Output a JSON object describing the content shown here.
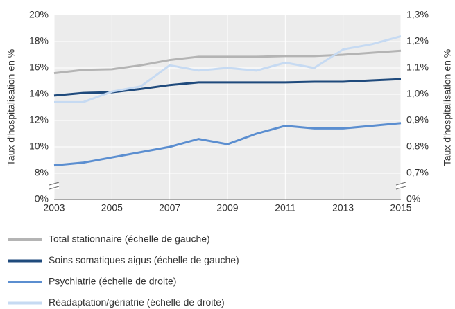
{
  "chart_data": {
    "type": "line",
    "ylabel": "Taux d'hospitalisation en %",
    "y2label": "Taux d'hospitalisation en %",
    "x": [
      2003,
      2004,
      2005,
      2006,
      2007,
      2008,
      2009,
      2010,
      2011,
      2012,
      2013,
      2014,
      2015
    ],
    "xlim": [
      2003,
      2015
    ],
    "xticks": [
      2003,
      2005,
      2007,
      2009,
      2011,
      2013,
      2015
    ],
    "ylim": [
      0,
      20
    ],
    "ybreak": [
      0,
      8
    ],
    "yticks": [
      {
        "value": 0,
        "label": "0%"
      },
      {
        "value": 8,
        "label": "8%"
      },
      {
        "value": 10,
        "label": "10%"
      },
      {
        "value": 12,
        "label": "12%"
      },
      {
        "value": 14,
        "label": "14%"
      },
      {
        "value": 16,
        "label": "16%"
      },
      {
        "value": 18,
        "label": "18%"
      },
      {
        "value": 20,
        "label": "20%"
      }
    ],
    "y2lim": [
      0,
      1.3
    ],
    "y2break": [
      0,
      0.7
    ],
    "y2ticks": [
      {
        "value": 0,
        "label": "0%"
      },
      {
        "value": 0.7,
        "label": "0,7%"
      },
      {
        "value": 0.8,
        "label": "0,8%"
      },
      {
        "value": 0.9,
        "label": "0,9%"
      },
      {
        "value": 1.0,
        "label": "1,0%"
      },
      {
        "value": 1.1,
        "label": "1,1%"
      },
      {
        "value": 1.2,
        "label": "1,2%"
      },
      {
        "value": 1.3,
        "label": "1,3%"
      }
    ],
    "grid": true,
    "series": [
      {
        "name": "Total stationnaire (échelle de gauche)",
        "color": "#b4b4b4",
        "axis": "y",
        "values": [
          15.6,
          15.85,
          15.9,
          16.2,
          16.6,
          16.85,
          16.85,
          16.85,
          16.9,
          16.9,
          17.0,
          17.15,
          17.3
        ]
      },
      {
        "name": "Soins somatiques aigus (échelle de gauche)",
        "color": "#1f4a7c",
        "axis": "y",
        "values": [
          13.9,
          14.1,
          14.15,
          14.4,
          14.7,
          14.9,
          14.9,
          14.9,
          14.9,
          14.95,
          14.95,
          15.05,
          15.15
        ]
      },
      {
        "name": "Psychiatrie (échelle de droite)",
        "color": "#5b8ed0",
        "axis": "y2",
        "values": [
          0.73,
          0.74,
          0.76,
          0.78,
          0.8,
          0.83,
          0.81,
          0.85,
          0.88,
          0.87,
          0.87,
          0.88,
          0.89
        ]
      },
      {
        "name": "Réadaptation/gériatrie (échelle de droite)",
        "color": "#c6daf2",
        "axis": "y2",
        "values": [
          0.97,
          0.97,
          1.01,
          1.03,
          1.11,
          1.09,
          1.1,
          1.09,
          1.12,
          1.1,
          1.17,
          1.19,
          1.22
        ]
      }
    ]
  }
}
